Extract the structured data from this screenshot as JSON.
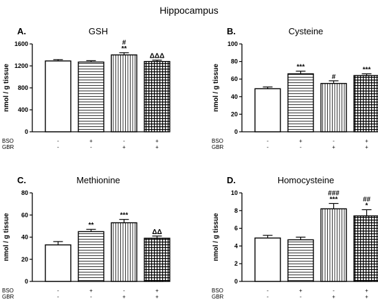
{
  "title": "Hippocampus",
  "chart_data": [
    {
      "type": "bar",
      "panel": "A.",
      "title": "GSH",
      "ylabel": "nmol / g tissue",
      "ylim": [
        0,
        1600
      ],
      "yticks": [
        0,
        400,
        800,
        1200,
        1600
      ],
      "treatments": [
        {
          "name": "BSO",
          "marks": [
            "-",
            "+",
            "-",
            "+"
          ]
        },
        {
          "name": "GBR",
          "marks": [
            "-",
            "-",
            "+",
            "+"
          ]
        }
      ],
      "values": [
        1290,
        1270,
        1400,
        1280
      ],
      "errors": [
        25,
        25,
        40,
        25
      ],
      "patterns": [
        "plain",
        "hlines",
        "vlines",
        "grid"
      ],
      "annotations": [
        [],
        [],
        [
          "#",
          "**"
        ],
        [
          "ΔΔΔ"
        ]
      ]
    },
    {
      "type": "bar",
      "panel": "B.",
      "title": "Cysteine",
      "ylabel": "nmol / g tissue",
      "ylim": [
        0,
        100
      ],
      "yticks": [
        0,
        20,
        40,
        60,
        80,
        100
      ],
      "treatments": [
        {
          "name": "BSO",
          "marks": [
            "-",
            "+",
            "-",
            "+"
          ]
        },
        {
          "name": "GBR",
          "marks": [
            "-",
            "-",
            "+",
            "+"
          ]
        }
      ],
      "values": [
        49,
        66,
        55,
        64
      ],
      "errors": [
        2,
        3,
        3,
        2
      ],
      "patterns": [
        "plain",
        "hlines",
        "vlines",
        "grid"
      ],
      "annotations": [
        [],
        [
          "***"
        ],
        [
          "#"
        ],
        [
          "***"
        ]
      ]
    },
    {
      "type": "bar",
      "panel": "C.",
      "title": "Methionine",
      "ylabel": "nmol / g tissue",
      "ylim": [
        0,
        80
      ],
      "yticks": [
        0,
        20,
        40,
        60,
        80
      ],
      "treatments": [
        {
          "name": "BSO",
          "marks": [
            "-",
            "+",
            "-",
            "+"
          ]
        },
        {
          "name": "GBR",
          "marks": [
            "-",
            "-",
            "+",
            "+"
          ]
        }
      ],
      "values": [
        33,
        45,
        53,
        39
      ],
      "errors": [
        3,
        2,
        3,
        2
      ],
      "patterns": [
        "plain",
        "hlines",
        "vlines",
        "grid"
      ],
      "annotations": [
        [],
        [
          "**"
        ],
        [
          "***"
        ],
        [
          "ΔΔ"
        ]
      ]
    },
    {
      "type": "bar",
      "panel": "D.",
      "title": "Homocysteine",
      "ylabel": "nmol / g tissue",
      "ylim": [
        0,
        10
      ],
      "yticks": [
        0,
        2,
        4,
        6,
        8,
        10
      ],
      "treatments": [
        {
          "name": "BSO",
          "marks": [
            "-",
            "+",
            "-",
            "+"
          ]
        },
        {
          "name": "GBR",
          "marks": [
            "-",
            "-",
            "+",
            "+"
          ]
        }
      ],
      "values": [
        4.9,
        4.7,
        8.2,
        7.4
      ],
      "errors": [
        0.3,
        0.3,
        0.6,
        0.7
      ],
      "patterns": [
        "plain",
        "hlines",
        "vlines",
        "grid"
      ],
      "annotations": [
        [],
        [],
        [
          "###",
          "***"
        ],
        [
          "##",
          "*"
        ]
      ]
    }
  ]
}
